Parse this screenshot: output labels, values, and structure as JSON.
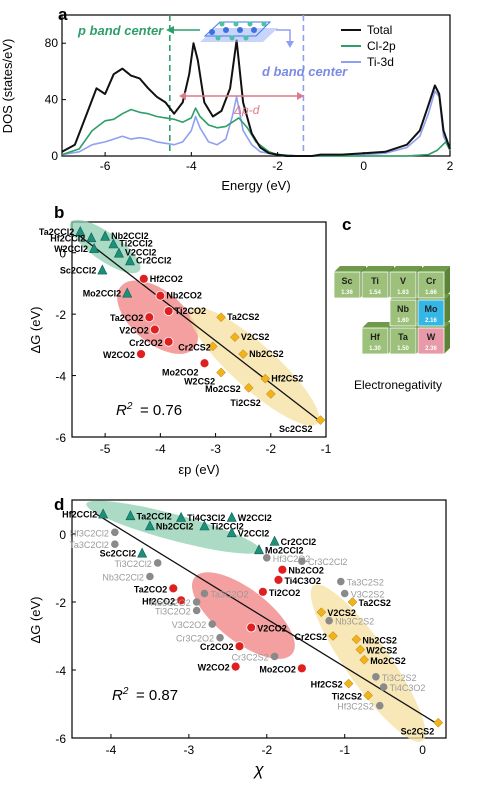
{
  "colors": {
    "total": "#111111",
    "cl2p": "#2e9e6a",
    "ti3d": "#8fa0f2",
    "green_region": "#8fcfb0",
    "red_region": "#f08080",
    "yellow_region": "#f6e0a0",
    "fit_line": "#111111",
    "en_green": "#9dc07a",
    "en_blue": "#35b7e6",
    "en_pink": "#e89aa8"
  },
  "chart_data": [
    {
      "panel": "a",
      "type": "line",
      "xlabel": "Energy (eV)",
      "ylabel": "DOS (states/eV)",
      "xlim": [
        -7,
        2
      ],
      "ylim": [
        0,
        100
      ],
      "xticks": [
        "-6",
        "-4",
        "-2",
        "0",
        "2"
      ],
      "yticks": [
        "0",
        "40",
        "80"
      ],
      "annotations": {
        "p_center": "p band center",
        "d_center": "d band center",
        "delta": "Δp-d",
        "p_center_x": -4.5,
        "d_center_x": -1.4
      },
      "series": [
        {
          "name": "Total",
          "x": [
            -7,
            -6.7,
            -6.4,
            -6.2,
            -6.0,
            -5.8,
            -5.6,
            -5.4,
            -5.2,
            -5.0,
            -4.8,
            -4.6,
            -4.4,
            -4.2,
            -4.05,
            -3.95,
            -3.85,
            -3.7,
            -3.5,
            -3.3,
            -3.1,
            -2.95,
            -2.8,
            -2.6,
            -2.4,
            -2.2,
            -2.0,
            -1.8,
            -1.6,
            -1.4,
            -1.2,
            -1.0,
            -0.5,
            0,
            0.5,
            1.0,
            1.3,
            1.5,
            1.65,
            1.75,
            1.85,
            2.0
          ],
          "y": [
            3,
            8,
            32,
            48,
            44,
            58,
            62,
            57,
            55,
            48,
            42,
            38,
            30,
            38,
            58,
            80,
            68,
            38,
            28,
            32,
            48,
            82,
            38,
            16,
            6,
            2,
            1,
            0,
            0,
            0,
            0,
            1,
            1,
            2,
            3,
            8,
            18,
            36,
            50,
            44,
            18,
            5
          ]
        },
        {
          "name": "Cl-2p",
          "x": [
            -7,
            -6.6,
            -6.3,
            -6.0,
            -5.8,
            -5.6,
            -5.4,
            -5.2,
            -5.0,
            -4.8,
            -4.6,
            -4.4,
            -4.2,
            -4.0,
            -3.9,
            -3.8,
            -3.6,
            -3.4,
            -3.2,
            -3.0,
            -2.9,
            -2.7,
            -2.5,
            -2.2,
            -2.0,
            -1.5,
            -1.0,
            0,
            1.0,
            1.5,
            1.7,
            1.9,
            2.0
          ],
          "y": [
            1,
            5,
            18,
            25,
            26,
            30,
            33,
            31,
            30,
            28,
            27,
            26,
            24,
            27,
            34,
            28,
            22,
            20,
            21,
            25,
            27,
            20,
            10,
            3,
            1,
            0,
            0,
            0,
            0,
            1,
            4,
            10,
            4
          ]
        },
        {
          "name": "Ti-3d",
          "x": [
            -7,
            -6.6,
            -6.3,
            -6.0,
            -5.8,
            -5.6,
            -5.4,
            -5.2,
            -5.0,
            -4.8,
            -4.6,
            -4.4,
            -4.2,
            -4.0,
            -3.9,
            -3.8,
            -3.6,
            -3.4,
            -3.2,
            -3.05,
            -2.95,
            -2.8,
            -2.6,
            -2.4,
            -2.0,
            -1.5,
            -1.0,
            0,
            0.5,
            1.0,
            1.3,
            1.5,
            1.65,
            1.75,
            1.85,
            2.0
          ],
          "y": [
            1,
            3,
            8,
            10,
            12,
            14,
            12,
            13,
            12,
            10,
            9,
            8,
            10,
            18,
            28,
            20,
            10,
            8,
            12,
            28,
            42,
            18,
            8,
            3,
            1,
            0,
            0,
            1,
            2,
            6,
            14,
            30,
            46,
            42,
            14,
            4
          ]
        }
      ]
    },
    {
      "panel": "b",
      "type": "scatter",
      "xlabel": "εp (eV)",
      "ylabel": "ΔG (eV)",
      "xlim": [
        -5.6,
        -1.0
      ],
      "ylim": [
        -6,
        1
      ],
      "xticks": [
        "-5",
        "-4",
        "-3",
        "-2",
        "-1"
      ],
      "yticks": [
        "0",
        "-2",
        "-4",
        "-6"
      ],
      "r2": "= 0.76",
      "fit": [
        [
          -5.5,
          0.6
        ],
        [
          -1.1,
          -5.5
        ]
      ],
      "points": [
        {
          "label": "Ta2CCl2",
          "x": -5.45,
          "y": 0.7,
          "g": "cl"
        },
        {
          "label": "Hf2CCl2",
          "x": -5.25,
          "y": 0.5,
          "g": "cl"
        },
        {
          "label": "Nb2CCl2",
          "x": -5.0,
          "y": 0.55,
          "g": "cl"
        },
        {
          "label": "Ti2CCl2",
          "x": -4.85,
          "y": 0.3,
          "g": "cl"
        },
        {
          "label": "W2CCl2",
          "x": -5.2,
          "y": 0.15,
          "g": "cl"
        },
        {
          "label": "V2CCl2",
          "x": -4.75,
          "y": 0.0,
          "g": "cl"
        },
        {
          "label": "Cr2CCl2",
          "x": -4.55,
          "y": -0.25,
          "g": "cl"
        },
        {
          "label": "Sc2CCl2",
          "x": -5.05,
          "y": -0.55,
          "g": "cl"
        },
        {
          "label": "Hf2CO2",
          "x": -4.3,
          "y": -0.85,
          "g": "o"
        },
        {
          "label": "Mo2CCl2",
          "x": -4.6,
          "y": -1.3,
          "g": "cl"
        },
        {
          "label": "Nb2CO2",
          "x": -4.0,
          "y": -1.4,
          "g": "o"
        },
        {
          "label": "Ti2CO2",
          "x": -3.85,
          "y": -1.9,
          "g": "o"
        },
        {
          "label": "Ta2CO2",
          "x": -4.2,
          "y": -2.1,
          "g": "o"
        },
        {
          "label": "V2CO2",
          "x": -4.1,
          "y": -2.5,
          "g": "o"
        },
        {
          "label": "Cr2CO2",
          "x": -3.85,
          "y": -2.9,
          "g": "o"
        },
        {
          "label": "W2CO2",
          "x": -4.35,
          "y": -3.3,
          "g": "o"
        },
        {
          "label": "Mo2CO2",
          "x": -3.2,
          "y": -3.6,
          "g": "o"
        },
        {
          "label": "Ta2CS2",
          "x": -2.9,
          "y": -2.1,
          "g": "s"
        },
        {
          "label": "V2CS2",
          "x": -2.65,
          "y": -2.75,
          "g": "s"
        },
        {
          "label": "Cr2CS2",
          "x": -3.05,
          "y": -3.05,
          "g": "s"
        },
        {
          "label": "Nb2CS2",
          "x": -2.5,
          "y": -3.3,
          "g": "s"
        },
        {
          "label": "W2CS2",
          "x": -2.9,
          "y": -3.9,
          "g": "s"
        },
        {
          "label": "Mo2CS2",
          "x": -2.4,
          "y": -4.4,
          "g": "s"
        },
        {
          "label": "Hf2CS2",
          "x": -2.1,
          "y": -4.1,
          "g": "s"
        },
        {
          "label": "Ti2CS2",
          "x": -2.0,
          "y": -4.6,
          "g": "s"
        },
        {
          "label": "Sc2CS2",
          "x": -1.1,
          "y": -5.45,
          "g": "s"
        }
      ]
    },
    {
      "panel": "c",
      "type": "table",
      "caption": "Electronegativity",
      "cells": [
        {
          "el": "Sc",
          "val": "1.36"
        },
        {
          "el": "Ti",
          "val": "1.54"
        },
        {
          "el": "V",
          "val": "1.63"
        },
        {
          "el": "Cr",
          "val": "1.66"
        },
        {
          "el": "Nb",
          "val": "1.60"
        },
        {
          "el": "Mo",
          "val": "2.16"
        },
        {
          "el": "Hf",
          "val": "1.30"
        },
        {
          "el": "Ta",
          "val": "1.50"
        },
        {
          "el": "W",
          "val": "2.36"
        }
      ]
    },
    {
      "panel": "d",
      "type": "scatter",
      "xlabel": "χ",
      "ylabel": "ΔG (eV)",
      "xlim": [
        -4.5,
        0.3
      ],
      "ylim": [
        -6,
        1
      ],
      "xticks": [
        "-4",
        "-3",
        "-2",
        "-1",
        "0"
      ],
      "yticks": [
        "0",
        "-2",
        "-4",
        "-6"
      ],
      "r2": "= 0.87",
      "fit": [
        [
          -4.2,
          0.6
        ],
        [
          0.2,
          -5.6
        ]
      ],
      "points": [
        {
          "label": "Hf2CCl2",
          "x": -4.1,
          "y": 0.6,
          "g": "cl"
        },
        {
          "label": "Ta2CCl2",
          "x": -3.75,
          "y": 0.55,
          "g": "cl"
        },
        {
          "label": "Ti4C3Cl2",
          "x": -3.1,
          "y": 0.5,
          "g": "cl"
        },
        {
          "label": "W2CCl2",
          "x": -2.45,
          "y": 0.5,
          "g": "cl"
        },
        {
          "label": "Nb2CCl2",
          "x": -3.5,
          "y": 0.25,
          "g": "cl"
        },
        {
          "label": "Ti2CCl2",
          "x": -2.8,
          "y": 0.25,
          "g": "cl"
        },
        {
          "label": "V2CCl2",
          "x": -2.45,
          "y": 0.05,
          "g": "cl"
        },
        {
          "label": "Hf3C2Cl2",
          "x": -3.95,
          "y": 0.05,
          "g": "n"
        },
        {
          "label": "Cr2CCl2",
          "x": -1.9,
          "y": -0.2,
          "g": "cl"
        },
        {
          "label": "Ta3C2Cl2",
          "x": -3.95,
          "y": -0.3,
          "g": "n"
        },
        {
          "label": "Mo2CCl2",
          "x": -2.1,
          "y": -0.45,
          "g": "cl"
        },
        {
          "label": "Sc2CCl2",
          "x": -3.6,
          "y": -0.55,
          "g": "cl"
        },
        {
          "label": "Hf3C2O2",
          "x": -2.0,
          "y": -0.7,
          "g": "n"
        },
        {
          "label": "Cr3C2Cl2",
          "x": -1.55,
          "y": -0.8,
          "g": "n"
        },
        {
          "label": "Ti3C2Cl2",
          "x": -3.4,
          "y": -0.85,
          "g": "n"
        },
        {
          "label": "Nb2CO2",
          "x": -1.8,
          "y": -1.05,
          "g": "o"
        },
        {
          "label": "Nb3C2Cl2",
          "x": -3.5,
          "y": -1.25,
          "g": "n"
        },
        {
          "label": "Ti4C3O2",
          "x": -1.85,
          "y": -1.35,
          "g": "o"
        },
        {
          "label": "Ta3C2S2",
          "x": -1.05,
          "y": -1.4,
          "g": "n"
        },
        {
          "label": "Ta2CO2",
          "x": -3.2,
          "y": -1.6,
          "g": "o"
        },
        {
          "label": "Ti2CO2",
          "x": -2.05,
          "y": -1.7,
          "g": "o"
        },
        {
          "label": "V3C2S2",
          "x": -1.0,
          "y": -1.75,
          "g": "n"
        },
        {
          "label": "Hf2CO2",
          "x": -3.1,
          "y": -1.95,
          "g": "o"
        },
        {
          "label": "Ta3C2O2",
          "x": -2.8,
          "y": -1.75,
          "g": "n"
        },
        {
          "label": "Ta2CS2",
          "x": -0.9,
          "y": -2.0,
          "g": "s"
        },
        {
          "label": "Nb3C2O2",
          "x": -2.9,
          "y": -2.0,
          "g": "n"
        },
        {
          "label": "Ti3C2O2",
          "x": -2.9,
          "y": -2.25,
          "g": "n"
        },
        {
          "label": "V2CS2",
          "x": -1.3,
          "y": -2.3,
          "g": "s"
        },
        {
          "label": "Nb3C2S2",
          "x": -1.2,
          "y": -2.55,
          "g": "n"
        },
        {
          "label": "V2CO2",
          "x": -2.2,
          "y": -2.75,
          "g": "o"
        },
        {
          "label": "V3C2O2",
          "x": -2.7,
          "y": -2.65,
          "g": "n"
        },
        {
          "label": "Cr2CS2",
          "x": -1.15,
          "y": -3.0,
          "g": "s"
        },
        {
          "label": "Nb2CS2",
          "x": -0.85,
          "y": -3.1,
          "g": "s"
        },
        {
          "label": "Cr3C2O2",
          "x": -2.6,
          "y": -3.05,
          "g": "n"
        },
        {
          "label": "Cr2CO2",
          "x": -2.35,
          "y": -3.3,
          "g": "o"
        },
        {
          "label": "W2CS2",
          "x": -0.8,
          "y": -3.4,
          "g": "s"
        },
        {
          "label": "Cr3C2S2",
          "x": -1.9,
          "y": -3.6,
          "g": "n"
        },
        {
          "label": "Mo2CS2",
          "x": -0.75,
          "y": -3.7,
          "g": "s"
        },
        {
          "label": "W2CO2",
          "x": -2.4,
          "y": -3.9,
          "g": "o"
        },
        {
          "label": "Mo2CO2",
          "x": -1.55,
          "y": -3.95,
          "g": "o"
        },
        {
          "label": "Ti3C2S2",
          "x": -0.6,
          "y": -4.2,
          "g": "n"
        },
        {
          "label": "Hf2CS2",
          "x": -0.95,
          "y": -4.4,
          "g": "s"
        },
        {
          "label": "Ti4C3O2",
          "x": -0.5,
          "y": -4.5,
          "g": "n"
        },
        {
          "label": "Ti2CS2",
          "x": -0.7,
          "y": -4.75,
          "g": "s"
        },
        {
          "label": "Hf3C2S2",
          "x": -0.55,
          "y": -5.05,
          "g": "n"
        },
        {
          "label": "Sc2CS2",
          "x": 0.2,
          "y": -5.55,
          "g": "s"
        }
      ]
    }
  ]
}
